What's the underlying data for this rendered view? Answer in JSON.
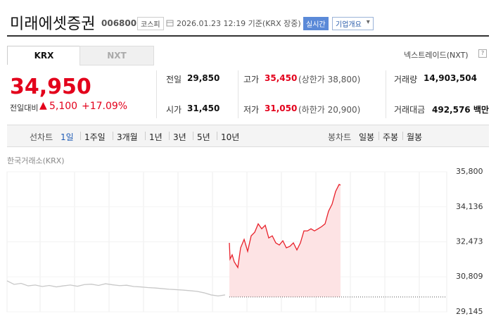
{
  "header": {
    "name": "미래에셋증권",
    "code": "006800",
    "market": "코스피",
    "timestamp": "2026.01.23 12:19 기준(KRX 장중)",
    "realtime": "실시간",
    "company_info": "기업개요"
  },
  "tabs": [
    "KRX",
    "NXT"
  ],
  "nxt_link": "넥스트레이드(NXT)",
  "quote": {
    "price": "34,950",
    "change_label": "전일대비",
    "change": "5,100",
    "change_pct": "+17.09%",
    "rows": [
      [
        {
          "label": "전일",
          "value": "29,850"
        },
        {
          "label": "고가",
          "value": "35,450",
          "note": "(상한가 38,800)"
        },
        {
          "label": "거래량",
          "value": "14,903,504"
        }
      ],
      [
        {
          "label": "시가",
          "value": "31,450"
        },
        {
          "label": "저가",
          "value": "31,050",
          "note": "(하한가 20,900)"
        },
        {
          "label": "거래대금",
          "value": "492,576 백만"
        }
      ]
    ]
  },
  "periods": {
    "line_label": "선차트",
    "line": [
      "1일",
      "1주일",
      "3개월",
      "1년",
      "3년",
      "5년",
      "10년"
    ],
    "candle_label": "봉차트",
    "candle": [
      "일봉",
      "주봉",
      "월봉"
    ]
  },
  "chart_data": {
    "type": "line",
    "source": "한국거래소(KRX)",
    "xlim": [
      0,
      62.5
    ],
    "ylim": [
      29145,
      35800
    ],
    "yticks": [
      {
        "value": 29145,
        "label": "29,145"
      },
      {
        "value": 30809,
        "label": "30,809"
      },
      {
        "value": 32473,
        "label": "32,473"
      },
      {
        "value": 34136,
        "label": "34,136"
      },
      {
        "value": 35800,
        "label": "35,800"
      }
    ],
    "baseline": 29850,
    "series": [
      {
        "color": "#c8c8c8",
        "fill": false,
        "x": [
          0,
          1,
          2,
          3,
          4,
          5,
          6,
          7,
          8,
          9,
          10,
          11,
          12,
          13,
          14,
          15,
          16,
          17,
          18,
          19,
          20,
          21,
          22,
          23,
          24,
          25,
          26,
          27,
          28,
          29,
          30,
          31
        ],
        "values": [
          30620,
          30450,
          30500,
          30380,
          30420,
          30350,
          30400,
          30330,
          30380,
          30420,
          30360,
          30440,
          30460,
          30400,
          30480,
          30430,
          30390,
          30410,
          30350,
          30330,
          30300,
          30280,
          30250,
          30220,
          30200,
          30180,
          30150,
          30120,
          30050,
          29950,
          29900,
          29950
        ]
      },
      {
        "color": "#e8202a",
        "fill": true,
        "x": [
          31.6,
          31.7,
          32,
          32.3,
          32.8,
          33.2,
          33.7,
          34.2,
          34.7,
          35.2,
          35.7,
          36.2,
          36.7,
          37.2,
          37.7,
          38.2,
          38.7,
          39.2,
          39.7,
          40.2,
          40.7,
          41.2,
          41.7,
          42.2,
          42.7,
          43.2,
          43.7,
          44.2,
          44.7,
          45.2,
          45.7,
          46.2,
          46.7,
          47.2,
          47.4
        ],
        "values": [
          32422,
          31653,
          31854,
          31519,
          31252,
          32188,
          32589,
          32021,
          32757,
          32924,
          33325,
          33091,
          33258,
          32656,
          32757,
          32422,
          32322,
          32522,
          32188,
          32255,
          32422,
          32088,
          32422,
          32991,
          32991,
          33091,
          32991,
          33091,
          33191,
          33325,
          33927,
          34261,
          34863,
          35197,
          35164
        ]
      }
    ]
  }
}
